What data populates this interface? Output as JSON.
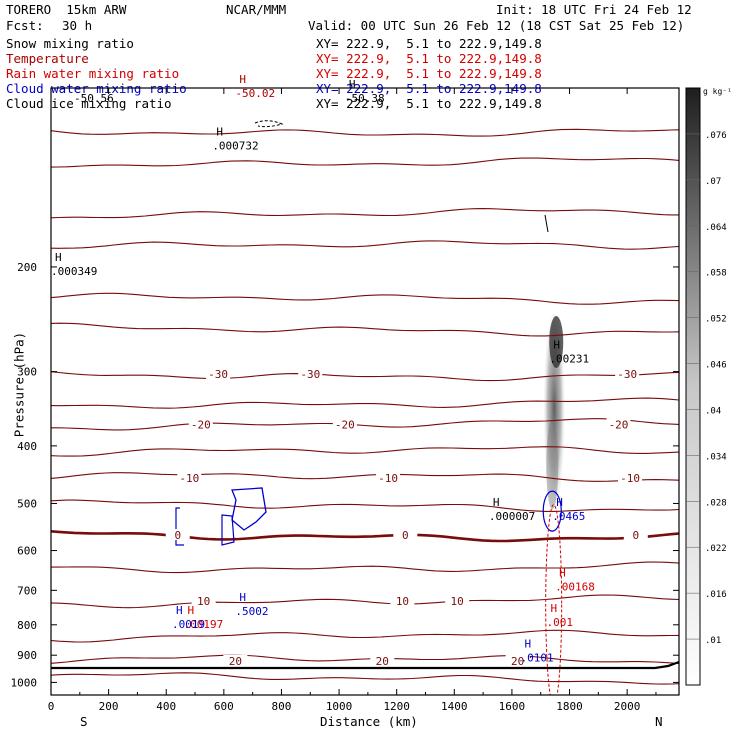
{
  "header": {
    "model": "TORERO  15km ARW",
    "center": "NCAR/MMM",
    "init": "Init: 18 UTC Fri 24 Feb 12",
    "fcst_label": "Fcst:",
    "fcst_value": "30 h",
    "valid": "Valid: 00 UTC Sun 26 Feb 12 (18 CST Sat 25 Feb 12)"
  },
  "legend": [
    {
      "label": "Snow mixing ratio",
      "xy": "XY= 222.9,  5.1 to 222.9,149.8",
      "color": "#000000"
    },
    {
      "label": "Temperature",
      "xy": "XY= 222.9,  5.1 to 222.9,149.8",
      "color": "#aa0000"
    },
    {
      "label": "Rain water mixing ratio",
      "xy": "XY= 222.9,  5.1 to 222.9,149.8",
      "color": "#d40000"
    },
    {
      "label": "Cloud water mixing ratio",
      "xy": "XY= 222.9,  5.1 to 222.9,149.8",
      "color": "#0000cc"
    },
    {
      "label": "Cloud ice mixing ratio",
      "xy": "XY= 222.9,  5.1 to 222.9,149.8",
      "color": "#000000"
    }
  ],
  "chart_data": {
    "type": "cross-section",
    "xlabel": "Distance (km)",
    "ylabel": "Pressure (hPa)",
    "x_range": [
      0,
      2180
    ],
    "y_range": [
      1050,
      100
    ],
    "y_scale": "log",
    "x_ticks": [
      0,
      200,
      400,
      600,
      800,
      1000,
      1200,
      1400,
      1600,
      1800,
      2000
    ],
    "y_ticks": [
      200,
      300,
      400,
      500,
      600,
      700,
      800,
      900,
      1000
    ],
    "endpoints": {
      "left": "S",
      "right": "N"
    },
    "colorbar": {
      "unit": "g kg⁻¹",
      "levels": [
        0.01,
        0.016,
        0.022,
        0.028,
        0.034,
        0.04,
        0.046,
        0.052,
        0.058,
        0.064,
        0.07,
        0.076
      ]
    },
    "temperature_isotherms": [
      {
        "value": -50,
        "pressure_hPa": 118,
        "labels": []
      },
      {
        "value": -45,
        "pressure_hPa": 133,
        "labels": []
      },
      {
        "value": -40,
        "pressure_hPa": 163,
        "labels": []
      },
      {
        "value": -35,
        "pressure_hPa": 185,
        "labels": []
      },
      {
        "value": -35,
        "pressure_hPa": 227,
        "labels": []
      },
      {
        "value": -35,
        "pressure_hPa": 255,
        "labels": []
      },
      {
        "value": -30,
        "pressure_hPa": 303,
        "labels": [
          [
            580,
            "-30"
          ],
          [
            900,
            "-30"
          ],
          [
            2000,
            "-30"
          ]
        ]
      },
      {
        "value": -25,
        "pressure_hPa": 338,
        "labels": []
      },
      {
        "value": -20,
        "pressure_hPa": 368,
        "labels": [
          [
            520,
            "-20"
          ],
          [
            1020,
            "-20"
          ],
          [
            1970,
            "-20"
          ]
        ]
      },
      {
        "value": -15,
        "pressure_hPa": 410,
        "labels": []
      },
      {
        "value": -10,
        "pressure_hPa": 453,
        "labels": [
          [
            480,
            "-10"
          ],
          [
            1170,
            "-10"
          ],
          [
            2010,
            "-10"
          ]
        ]
      },
      {
        "value": -5,
        "pressure_hPa": 505,
        "labels": []
      },
      {
        "value": 0,
        "pressure_hPa": 565,
        "labels": [
          [
            440,
            "0"
          ],
          [
            1230,
            "0"
          ],
          [
            2030,
            "0"
          ]
        ],
        "bold": true
      },
      {
        "value": 5,
        "pressure_hPa": 638,
        "labels": []
      },
      {
        "value": 10,
        "pressure_hPa": 730,
        "labels": [
          [
            530,
            "10"
          ],
          [
            1220,
            "10"
          ],
          [
            1410,
            "10"
          ]
        ]
      },
      {
        "value": 15,
        "pressure_hPa": 838,
        "labels": []
      },
      {
        "value": 20,
        "pressure_hPa": 920,
        "labels": [
          [
            640,
            "20"
          ],
          [
            1150,
            "20"
          ],
          [
            1620,
            "20"
          ]
        ]
      },
      {
        "value": 25,
        "pressure_hPa": 985,
        "labels": []
      }
    ],
    "annotations": [
      {
        "kind": "temp_max",
        "text": "-50.02",
        "x_km": 640,
        "p_hPa": 102,
        "color": "#aa0000"
      },
      {
        "kind": "temp_min",
        "text": "-50.56",
        "x_km": 80,
        "p_hPa": 104,
        "color": "#000000"
      },
      {
        "kind": "temp_max",
        "text": "-50.38",
        "x_km": 1020,
        "p_hPa": 104,
        "color": "#000000"
      },
      {
        "kind": "max",
        "text": ".000732",
        "x_km": 560,
        "p_hPa": 125,
        "color": "#000000"
      },
      {
        "kind": "max",
        "text": ".000349",
        "x_km": 0,
        "p_hPa": 203,
        "color": "#000000"
      },
      {
        "kind": "max",
        "text": ".00231",
        "x_km": 1730,
        "p_hPa": 285,
        "color": "#000000"
      },
      {
        "kind": "max",
        "text": ".000007",
        "x_km": 1520,
        "p_hPa": 525,
        "color": "#000000"
      },
      {
        "kind": "max",
        "text": ".0465",
        "x_km": 1740,
        "p_hPa": 525,
        "color": "#0000cc"
      },
      {
        "kind": "max",
        "text": ".00168",
        "x_km": 1750,
        "p_hPa": 690,
        "color": "#d40000"
      },
      {
        "kind": "max",
        "text": ".001",
        "x_km": 1720,
        "p_hPa": 792,
        "color": "#d40000"
      },
      {
        "kind": "max",
        "text": ".5002",
        "x_km": 640,
        "p_hPa": 758,
        "color": "#0000cc"
      },
      {
        "kind": "max",
        "text": ".00197",
        "x_km": 460,
        "p_hPa": 797,
        "color": "#d40000"
      },
      {
        "kind": "max",
        "text": ".0019",
        "x_km": 420,
        "p_hPa": 797,
        "color": "#0000cc"
      },
      {
        "kind": "max",
        "text": ".0101",
        "x_km": 1630,
        "p_hPa": 908,
        "color": "#0000cc"
      }
    ],
    "snow_plume": {
      "x_km": 1740,
      "p_top_hPa": 240,
      "p_bottom_hPa": 540,
      "max_g_kg": 0.076
    }
  }
}
